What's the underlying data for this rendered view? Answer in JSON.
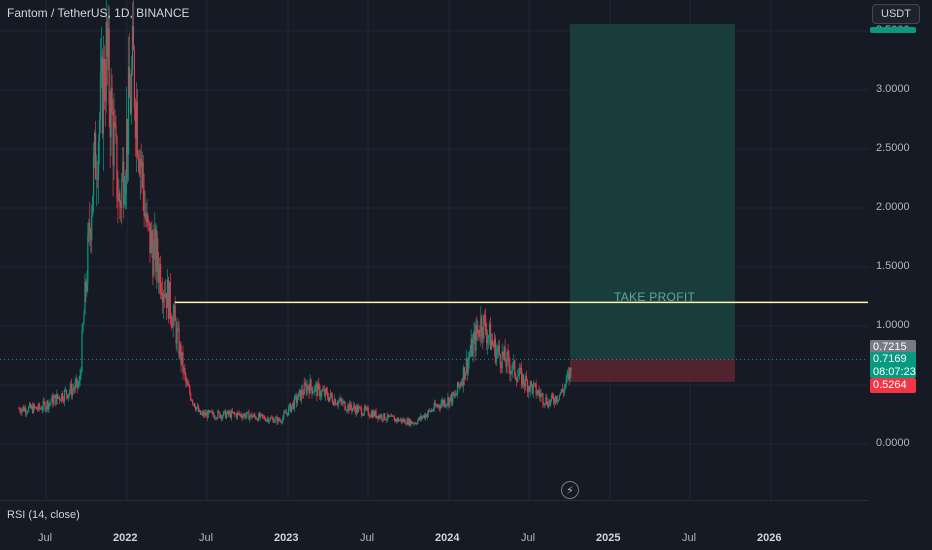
{
  "header": {
    "symbol_title": "Fantom / TetherUS, 1D, BINANCE",
    "currency_button": "USDT"
  },
  "price_axis": {
    "ticks": [
      "3.5000",
      "3.0000",
      "2.5000",
      "2.0000",
      "1.5000",
      "1.0000",
      "0.0000"
    ],
    "badges": {
      "last_price": "0.7215",
      "current_price": "0.7169",
      "countdown": "08:07:23",
      "stop_price": "0.5264"
    }
  },
  "time_axis": {
    "ticks": [
      {
        "label": "Jul",
        "bold": false
      },
      {
        "label": "2022",
        "bold": true
      },
      {
        "label": "Jul",
        "bold": false
      },
      {
        "label": "2023",
        "bold": true
      },
      {
        "label": "Jul",
        "bold": false
      },
      {
        "label": "2024",
        "bold": true
      },
      {
        "label": "Jul",
        "bold": false
      },
      {
        "label": "2025",
        "bold": true
      },
      {
        "label": "Jul",
        "bold": false
      },
      {
        "label": "2026",
        "bold": true
      }
    ]
  },
  "indicator": {
    "rsi_label": "RSI (14, close)"
  },
  "drawings": {
    "take_profit_label": "TAKE PROFIT",
    "horizontal_line_price": 1.2,
    "position": {
      "entry": 0.7215,
      "target": 3.56,
      "stop": 0.5264
    }
  },
  "colors": {
    "background": "#161a25",
    "up_candle": "#089981",
    "down_candle": "#f23645",
    "profit_zone": "#1b4a42",
    "loss_zone": "#5a2630",
    "level_line": "#fff3b0"
  },
  "icons": {
    "bolt": "lightning-icon"
  },
  "chart_data": {
    "type": "line",
    "title": "Fantom / TetherUS, 1D, BINANCE",
    "xlabel": "",
    "ylabel": "",
    "ylim": [
      -0.1,
      3.8
    ],
    "grid": true,
    "x": [
      "2021-06",
      "2021-09",
      "2021-10",
      "2021-11",
      "2021-12",
      "2022-01",
      "2022-02",
      "2022-03",
      "2022-04",
      "2022-05",
      "2022-06",
      "2022-09",
      "2022-12",
      "2023-02",
      "2023-05",
      "2023-08",
      "2023-10",
      "2023-12",
      "2024-01",
      "2024-03",
      "2024-04",
      "2024-06",
      "2024-08",
      "2024-09",
      "2024-10"
    ],
    "series": [
      {
        "values": [
          0.3,
          0.5,
          2.2,
          3.3,
          2.0,
          3.2,
          1.8,
          1.5,
          1.1,
          0.5,
          0.25,
          0.25,
          0.2,
          0.5,
          0.32,
          0.22,
          0.18,
          0.35,
          0.4,
          1.05,
          0.8,
          0.55,
          0.35,
          0.45,
          0.72
        ]
      }
    ]
  }
}
